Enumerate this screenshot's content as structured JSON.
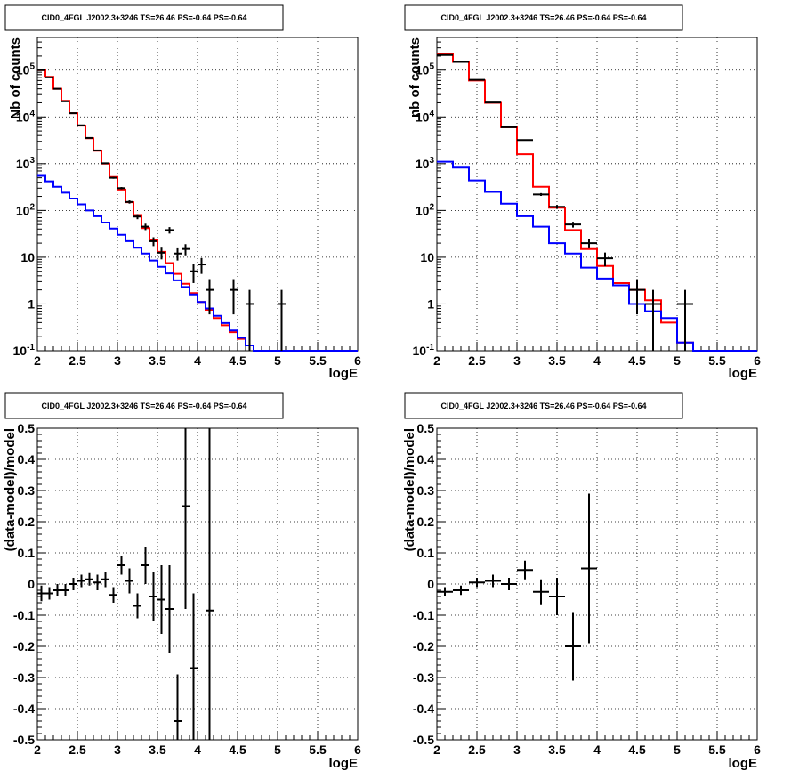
{
  "chart_data": [
    {
      "type": "line",
      "title": "CID0_4FGL J2002.3+3246 TS=26.46 PS=-0.64 PS=-0.64",
      "xlabel": "logE",
      "ylabel": "Nb of counts",
      "yscale": "log",
      "xlim": [
        2,
        6
      ],
      "ylim": [
        0.1,
        500000
      ],
      "grid": true,
      "x_ticks": [
        "2",
        "2.5",
        "3",
        "3.5",
        "4",
        "4.5",
        "5",
        "5.5",
        "6"
      ],
      "y_ticks": [
        "10^-1",
        "1",
        "10",
        "10^2",
        "10^3",
        "10^4",
        "10^5"
      ],
      "bin_edges": [
        2.0,
        2.1,
        2.2,
        2.3,
        2.4,
        2.5,
        2.6,
        2.7,
        2.8,
        2.9,
        3.0,
        3.1,
        3.2,
        3.3,
        3.4,
        3.5,
        3.6,
        3.7,
        3.8,
        3.9,
        4.0,
        4.1,
        4.2,
        4.3,
        4.4,
        4.5,
        4.6,
        4.7,
        4.8,
        4.9,
        5.0,
        5.1,
        5.2,
        5.3,
        5.4,
        5.5,
        5.6,
        5.7,
        5.8,
        5.9,
        6.0
      ],
      "series": [
        {
          "color": "#ff0000",
          "style": "step",
          "values": [
            100000,
            72000,
            40000,
            22000,
            12000,
            6500,
            3500,
            1900,
            1000,
            520,
            280,
            150,
            80,
            42,
            23,
            13,
            7.5,
            4.4,
            2.7,
            1.7,
            1.1,
            0.75,
            0.5,
            0.35,
            0.25,
            0.18,
            0.13,
            0.1,
            0.1,
            0.1,
            0.1,
            0.1,
            0.1,
            0.1,
            0.1,
            0.1,
            0.1,
            0.1,
            0.1,
            0.1
          ]
        },
        {
          "color": "#0000ff",
          "style": "step",
          "values": [
            550,
            420,
            320,
            240,
            180,
            135,
            100,
            75,
            55,
            41,
            30,
            22,
            16,
            12,
            8.5,
            6.2,
            4.5,
            3.2,
            2.3,
            1.6,
            1.1,
            0.8,
            0.56,
            0.39,
            0.27,
            0.19,
            0.13,
            0.1,
            0.1,
            0.1,
            0.1,
            0.1,
            0.1,
            0.1,
            0.1,
            0.1,
            0.1,
            0.1,
            0.1,
            0.1
          ]
        }
      ],
      "points": [
        {
          "x": 2.05,
          "y": 100000,
          "ylo": 99700,
          "yhi": 100300,
          "xerr": 0.05
        },
        {
          "x": 2.15,
          "y": 70000,
          "ylo": 69700,
          "yhi": 70300,
          "xerr": 0.05
        },
        {
          "x": 2.25,
          "y": 40000,
          "ylo": 39800,
          "yhi": 40200,
          "xerr": 0.05
        },
        {
          "x": 2.35,
          "y": 21500,
          "ylo": 21350,
          "yhi": 21650,
          "xerr": 0.05
        },
        {
          "x": 2.45,
          "y": 12000,
          "ylo": 11900,
          "yhi": 12100,
          "xerr": 0.05
        },
        {
          "x": 2.55,
          "y": 6600,
          "ylo": 6520,
          "yhi": 6680,
          "xerr": 0.05
        },
        {
          "x": 2.65,
          "y": 3550,
          "ylo": 3490,
          "yhi": 3610,
          "xerr": 0.05
        },
        {
          "x": 2.75,
          "y": 1920,
          "ylo": 1880,
          "yhi": 1960,
          "xerr": 0.05
        },
        {
          "x": 2.85,
          "y": 1020,
          "ylo": 990,
          "yhi": 1050,
          "xerr": 0.05
        },
        {
          "x": 2.95,
          "y": 500,
          "ylo": 478,
          "yhi": 522,
          "xerr": 0.05
        },
        {
          "x": 3.05,
          "y": 300,
          "ylo": 283,
          "yhi": 317,
          "xerr": 0.05
        },
        {
          "x": 3.15,
          "y": 152,
          "ylo": 140,
          "yhi": 164,
          "xerr": 0.05
        },
        {
          "x": 3.25,
          "y": 74,
          "ylo": 65,
          "yhi": 83,
          "xerr": 0.05
        },
        {
          "x": 3.35,
          "y": 45,
          "ylo": 38,
          "yhi": 52,
          "xerr": 0.05
        },
        {
          "x": 3.45,
          "y": 22,
          "ylo": 17.3,
          "yhi": 26.7,
          "xerr": 0.05
        },
        {
          "x": 3.55,
          "y": 12.5,
          "ylo": 9,
          "yhi": 16,
          "xerr": 0.05
        },
        {
          "x": 3.65,
          "y": 38,
          "ylo": 32,
          "yhi": 44,
          "xerr": 0.05
        },
        {
          "x": 3.75,
          "y": 12,
          "ylo": 8.5,
          "yhi": 15.5,
          "xerr": 0.05
        },
        {
          "x": 3.85,
          "y": 15,
          "ylo": 11,
          "yhi": 19,
          "xerr": 0.05
        },
        {
          "x": 3.95,
          "y": 5,
          "ylo": 2.8,
          "yhi": 7.2,
          "xerr": 0.05
        },
        {
          "x": 4.05,
          "y": 7,
          "ylo": 4.4,
          "yhi": 9.6,
          "xerr": 0.05
        },
        {
          "x": 4.15,
          "y": 2,
          "ylo": 0.6,
          "yhi": 3.4,
          "xerr": 0.05
        },
        {
          "x": 4.45,
          "y": 2,
          "ylo": 0.6,
          "yhi": 3.4,
          "xerr": 0.05
        },
        {
          "x": 4.65,
          "y": 1,
          "ylo": 0.1,
          "yhi": 2,
          "xerr": 0.05
        },
        {
          "x": 5.05,
          "y": 1,
          "ylo": 0.1,
          "yhi": 2,
          "xerr": 0.05
        }
      ]
    },
    {
      "type": "line",
      "title": "CID0_4FGL J2002.3+3246 TS=26.46 PS=-0.64 PS=-0.64",
      "xlabel": "logE",
      "ylabel": "nb of counts",
      "yscale": "log",
      "xlim": [
        2,
        6
      ],
      "ylim": [
        0.1,
        500000
      ],
      "grid": true,
      "x_ticks": [
        "2",
        "2.5",
        "3",
        "3.5",
        "4",
        "4.5",
        "5",
        "5.5",
        "6"
      ],
      "y_ticks": [
        "10^-1",
        "1",
        "10",
        "10^2",
        "10^3",
        "10^4",
        "10^5"
      ],
      "bin_edges": [
        2.0,
        2.2,
        2.4,
        2.6,
        2.8,
        3.0,
        3.2,
        3.4,
        3.6,
        3.8,
        4.0,
        4.2,
        4.4,
        4.6,
        4.8,
        5.0,
        5.2,
        5.4,
        5.6,
        5.8,
        6.0
      ],
      "series": [
        {
          "color": "#ff0000",
          "style": "step",
          "values": [
            220000,
            150000,
            60000,
            20000,
            6000,
            1600,
            320,
            115,
            38,
            15,
            6.5,
            2.8,
            2.0,
            1.2,
            0.4,
            0.15,
            0.1,
            0.1,
            0.1,
            0.1
          ]
        },
        {
          "color": "#0000ff",
          "style": "step",
          "values": [
            1100,
            820,
            440,
            250,
            140,
            75,
            45,
            20,
            12,
            6.0,
            3.5,
            2.5,
            1.0,
            0.7,
            0.5,
            0.15,
            0.1,
            0.1,
            0.1,
            0.1
          ]
        }
      ],
      "points": [
        {
          "x": 2.1,
          "y": 210000,
          "ylo": 209500,
          "yhi": 210500,
          "xerr": 0.1
        },
        {
          "x": 2.3,
          "y": 150000,
          "ylo": 149600,
          "yhi": 150400,
          "xerr": 0.1
        },
        {
          "x": 2.5,
          "y": 62000,
          "ylo": 61750,
          "yhi": 62250,
          "xerr": 0.1
        },
        {
          "x": 2.7,
          "y": 20300,
          "ylo": 20150,
          "yhi": 20450,
          "xerr": 0.1
        },
        {
          "x": 2.9,
          "y": 6000,
          "ylo": 5920,
          "yhi": 6080,
          "xerr": 0.1
        },
        {
          "x": 3.1,
          "y": 3200,
          "ylo": 3140,
          "yhi": 3260,
          "xerr": 0.1
        },
        {
          "x": 3.3,
          "y": 220,
          "ylo": 205,
          "yhi": 235,
          "xerr": 0.1
        },
        {
          "x": 3.5,
          "y": 120,
          "ylo": 109,
          "yhi": 131,
          "xerr": 0.1
        },
        {
          "x": 3.7,
          "y": 50,
          "ylo": 43,
          "yhi": 57,
          "xerr": 0.1
        },
        {
          "x": 3.9,
          "y": 20,
          "ylo": 15.5,
          "yhi": 24.5,
          "xerr": 0.1
        },
        {
          "x": 4.1,
          "y": 9.5,
          "ylo": 6.4,
          "yhi": 12.6,
          "xerr": 0.1
        },
        {
          "x": 4.5,
          "y": 2,
          "ylo": 0.6,
          "yhi": 3.4,
          "xerr": 0.1
        },
        {
          "x": 4.7,
          "y": 1,
          "ylo": 0.1,
          "yhi": 2,
          "xerr": 0.1
        },
        {
          "x": 5.1,
          "y": 1,
          "ylo": 0.1,
          "yhi": 2,
          "xerr": 0.1
        }
      ]
    },
    {
      "type": "scatter",
      "title": "CID0_4FGL J2002.3+3246 TS=26.46 PS=-0.64 PS=-0.64",
      "xlabel": "logE",
      "ylabel": "(data-model)/model",
      "yscale": "linear",
      "xlim": [
        2,
        6
      ],
      "ylim": [
        -0.5,
        0.5
      ],
      "grid": true,
      "x_ticks": [
        "2",
        "2.5",
        "3",
        "3.5",
        "4",
        "4.5",
        "5",
        "5.5",
        "6"
      ],
      "y_ticks": [
        "-0.5",
        "-0.4",
        "-0.3",
        "-0.2",
        "-0.1",
        "0",
        "0.1",
        "0.2",
        "0.3",
        "0.4",
        "0.5"
      ],
      "points": [
        {
          "x": 2.05,
          "y": -0.03,
          "ylo": -0.055,
          "yhi": -0.005,
          "xerr": 0.05
        },
        {
          "x": 2.15,
          "y": -0.03,
          "ylo": -0.05,
          "yhi": -0.01,
          "xerr": 0.05
        },
        {
          "x": 2.25,
          "y": -0.02,
          "ylo": -0.04,
          "yhi": 0.0,
          "xerr": 0.05
        },
        {
          "x": 2.35,
          "y": -0.02,
          "ylo": -0.04,
          "yhi": 0.0,
          "xerr": 0.05
        },
        {
          "x": 2.45,
          "y": 0.0,
          "ylo": -0.02,
          "yhi": 0.02,
          "xerr": 0.05
        },
        {
          "x": 2.55,
          "y": 0.01,
          "ylo": -0.01,
          "yhi": 0.03,
          "xerr": 0.05
        },
        {
          "x": 2.65,
          "y": 0.015,
          "ylo": -0.005,
          "yhi": 0.035,
          "xerr": 0.05
        },
        {
          "x": 2.75,
          "y": 0.005,
          "ylo": -0.02,
          "yhi": 0.03,
          "xerr": 0.05
        },
        {
          "x": 2.85,
          "y": 0.015,
          "ylo": -0.01,
          "yhi": 0.04,
          "xerr": 0.05
        },
        {
          "x": 2.95,
          "y": -0.035,
          "ylo": -0.06,
          "yhi": -0.01,
          "xerr": 0.05
        },
        {
          "x": 3.05,
          "y": 0.06,
          "ylo": 0.03,
          "yhi": 0.09,
          "xerr": 0.05
        },
        {
          "x": 3.15,
          "y": 0.01,
          "ylo": -0.03,
          "yhi": 0.05,
          "xerr": 0.05
        },
        {
          "x": 3.25,
          "y": -0.07,
          "ylo": -0.11,
          "yhi": -0.03,
          "xerr": 0.05
        },
        {
          "x": 3.35,
          "y": 0.06,
          "ylo": 0.0,
          "yhi": 0.12,
          "xerr": 0.05
        },
        {
          "x": 3.45,
          "y": -0.04,
          "ylo": -0.12,
          "yhi": 0.04,
          "xerr": 0.05
        },
        {
          "x": 3.55,
          "y": -0.05,
          "ylo": -0.16,
          "yhi": 0.06,
          "xerr": 0.05
        },
        {
          "x": 3.65,
          "y": -0.08,
          "ylo": -0.22,
          "yhi": 0.06,
          "xerr": 0.05
        },
        {
          "x": 3.75,
          "y": -0.44,
          "ylo": -0.5,
          "yhi": -0.29,
          "xerr": 0.05
        },
        {
          "x": 3.85,
          "y": 0.25,
          "ylo": -0.08,
          "yhi": 0.5,
          "xerr": 0.05
        },
        {
          "x": 3.95,
          "y": -0.27,
          "ylo": -0.5,
          "yhi": -0.03,
          "xerr": 0.05
        },
        {
          "x": 4.15,
          "y": -0.085,
          "ylo": -0.5,
          "yhi": 0.5,
          "xerr": 0.05
        }
      ]
    },
    {
      "type": "scatter",
      "title": "CID0_4FGL J2002.3+3246 TS=26.46 PS=-0.64 PS=-0.64",
      "xlabel": "logE",
      "ylabel": "(data-model)/model",
      "yscale": "linear",
      "xlim": [
        2,
        6
      ],
      "ylim": [
        -0.5,
        0.5
      ],
      "grid": true,
      "x_ticks": [
        "2",
        "2.5",
        "3",
        "3.5",
        "4",
        "4.5",
        "5",
        "5.5",
        "6"
      ],
      "y_ticks": [
        "-0.5",
        "-0.4",
        "-0.3",
        "-0.2",
        "-0.1",
        "0",
        "0.1",
        "0.2",
        "0.3",
        "0.4",
        "0.5"
      ],
      "points": [
        {
          "x": 2.1,
          "y": -0.025,
          "ylo": -0.04,
          "yhi": -0.01,
          "xerr": 0.1
        },
        {
          "x": 2.3,
          "y": -0.02,
          "ylo": -0.035,
          "yhi": -0.005,
          "xerr": 0.1
        },
        {
          "x": 2.5,
          "y": 0.005,
          "ylo": -0.01,
          "yhi": 0.02,
          "xerr": 0.1
        },
        {
          "x": 2.7,
          "y": 0.01,
          "ylo": -0.01,
          "yhi": 0.03,
          "xerr": 0.1
        },
        {
          "x": 2.9,
          "y": 0.0,
          "ylo": -0.02,
          "yhi": 0.02,
          "xerr": 0.1
        },
        {
          "x": 3.1,
          "y": 0.045,
          "ylo": 0.015,
          "yhi": 0.075,
          "xerr": 0.1
        },
        {
          "x": 3.3,
          "y": -0.025,
          "ylo": -0.065,
          "yhi": 0.015,
          "xerr": 0.1
        },
        {
          "x": 3.5,
          "y": -0.04,
          "ylo": -0.1,
          "yhi": 0.02,
          "xerr": 0.1
        },
        {
          "x": 3.7,
          "y": -0.2,
          "ylo": -0.31,
          "yhi": -0.09,
          "xerr": 0.1
        },
        {
          "x": 3.9,
          "y": 0.05,
          "ylo": -0.19,
          "yhi": 0.29,
          "xerr": 0.1
        }
      ]
    }
  ]
}
